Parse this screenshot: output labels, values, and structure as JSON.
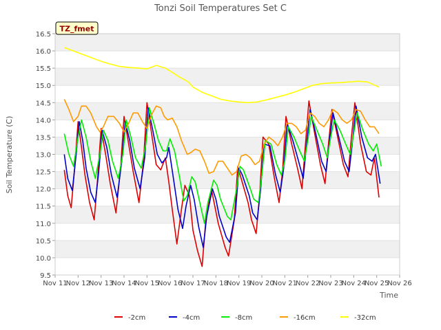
{
  "chart_data": {
    "type": "line",
    "title": "Tonzi Soil Temperatures Set C",
    "xlabel": "Time",
    "ylabel": "Soil Temperature (C)",
    "ylim": [
      9.5,
      16.5
    ],
    "yticks": [
      9.5,
      10.0,
      10.5,
      11.0,
      11.5,
      12.0,
      12.5,
      13.0,
      13.5,
      14.0,
      14.5,
      15.0,
      15.5,
      16.0,
      16.5
    ],
    "ytick_labels": [
      "9.5",
      "10.0",
      "10.5",
      "11.0",
      "11.5",
      "12.0",
      "12.5",
      "13.0",
      "13.5",
      "14.0",
      "14.5",
      "15.0",
      "15.5",
      "16.0",
      "16.5"
    ],
    "xlim": [
      11,
      26
    ],
    "xticks": [
      11,
      12,
      13,
      14,
      15,
      16,
      17,
      18,
      19,
      20,
      21,
      22,
      23,
      24,
      25,
      26
    ],
    "xtick_labels": [
      "Nov 11",
      "Nov 12",
      "Nov 13",
      "Nov 14",
      "Nov 15",
      "Nov 16",
      "Nov 17",
      "Nov 18",
      "Nov 19",
      "Nov 20",
      "Nov 21",
      "Nov 22",
      "Nov 23",
      "Nov 24",
      "Nov 25",
      "Nov 26"
    ],
    "grid": "horizontal bands",
    "annotation": "TZ_fmet",
    "legend_position": "bottom",
    "series": [
      {
        "name": "-2cm",
        "color": "#dd0000",
        "x": [
          11.4,
          11.55,
          11.7,
          11.85,
          12.0,
          12.15,
          12.3,
          12.5,
          12.7,
          12.85,
          13.0,
          13.2,
          13.4,
          13.65,
          13.85,
          14.0,
          14.2,
          14.4,
          14.65,
          14.85,
          15.0,
          15.2,
          15.4,
          15.6,
          15.8,
          15.95,
          16.1,
          16.3,
          16.5,
          16.65,
          16.85,
          17.0,
          17.2,
          17.4,
          17.55,
          17.8,
          17.95,
          18.1,
          18.4,
          18.55,
          18.8,
          18.95,
          19.1,
          19.4,
          19.55,
          19.75,
          19.9,
          20.05,
          20.3,
          20.55,
          20.75,
          20.9,
          21.05,
          21.3,
          21.55,
          21.75,
          21.9,
          22.05,
          22.3,
          22.55,
          22.75,
          22.9,
          23.05,
          23.3,
          23.55,
          23.75,
          23.9,
          24.05,
          24.3,
          24.55,
          24.75,
          24.9,
          25.1
        ],
        "y": [
          12.55,
          11.8,
          11.45,
          12.6,
          13.95,
          13.2,
          12.4,
          11.6,
          11.1,
          12.3,
          13.75,
          13.0,
          12.15,
          11.3,
          12.6,
          14.1,
          13.3,
          12.5,
          11.6,
          12.8,
          14.5,
          13.6,
          12.7,
          12.55,
          12.9,
          12.2,
          11.4,
          10.4,
          11.4,
          12.1,
          11.8,
          10.8,
          10.2,
          9.75,
          11.0,
          12.0,
          11.5,
          11.0,
          10.3,
          10.05,
          11.1,
          12.65,
          12.3,
          11.6,
          11.1,
          10.7,
          11.8,
          13.5,
          13.3,
          12.3,
          11.6,
          12.5,
          14.1,
          13.3,
          12.6,
          12.0,
          13.3,
          14.55,
          13.6,
          12.7,
          12.15,
          13.3,
          14.3,
          13.5,
          12.7,
          12.35,
          13.5,
          14.5,
          13.3,
          12.5,
          12.4,
          12.9,
          11.75
        ]
      },
      {
        "name": "-4cm",
        "color": "#0000cc",
        "x": [
          11.4,
          11.55,
          11.75,
          11.9,
          12.05,
          12.2,
          12.35,
          12.55,
          12.75,
          12.9,
          13.05,
          13.25,
          13.45,
          13.7,
          13.9,
          14.05,
          14.25,
          14.45,
          14.7,
          14.9,
          15.05,
          15.25,
          15.45,
          15.65,
          15.85,
          15.95,
          16.15,
          16.35,
          16.55,
          16.7,
          16.9,
          17.05,
          17.25,
          17.45,
          17.6,
          17.85,
          18.0,
          18.15,
          18.45,
          18.6,
          18.85,
          19.0,
          19.15,
          19.45,
          19.6,
          19.8,
          19.95,
          20.1,
          20.35,
          20.6,
          20.8,
          20.95,
          21.1,
          21.35,
          21.6,
          21.8,
          21.95,
          22.1,
          22.35,
          22.6,
          22.8,
          22.95,
          23.1,
          23.35,
          23.6,
          23.8,
          23.95,
          24.1,
          24.35,
          24.6,
          24.8,
          24.95,
          25.15
        ],
        "y": [
          13.0,
          12.3,
          11.95,
          12.9,
          13.95,
          13.4,
          12.6,
          11.9,
          11.6,
          12.5,
          13.7,
          13.2,
          12.4,
          11.75,
          12.8,
          13.95,
          13.4,
          12.6,
          12.0,
          12.9,
          14.35,
          13.7,
          13.0,
          12.75,
          12.9,
          13.2,
          12.3,
          11.4,
          10.85,
          11.5,
          12.1,
          11.7,
          10.9,
          10.3,
          11.2,
          12.0,
          11.7,
          11.2,
          10.6,
          10.45,
          11.3,
          12.6,
          12.4,
          11.8,
          11.3,
          11.1,
          12.0,
          13.3,
          13.25,
          12.4,
          11.9,
          12.6,
          13.9,
          13.4,
          12.8,
          12.3,
          13.3,
          14.3,
          13.6,
          12.8,
          12.5,
          13.4,
          14.2,
          13.5,
          12.8,
          12.5,
          13.4,
          14.4,
          13.5,
          12.9,
          12.8,
          13.0,
          12.15
        ]
      },
      {
        "name": "-8cm",
        "color": "#00ee00",
        "x": [
          11.4,
          11.6,
          11.8,
          12.0,
          12.15,
          12.35,
          12.55,
          12.75,
          12.95,
          13.1,
          13.3,
          13.5,
          13.75,
          13.95,
          14.1,
          14.3,
          14.5,
          14.75,
          14.95,
          15.1,
          15.3,
          15.5,
          15.7,
          15.85,
          16.0,
          16.2,
          16.4,
          16.6,
          16.75,
          16.95,
          17.1,
          17.3,
          17.5,
          17.65,
          17.9,
          18.05,
          18.2,
          18.5,
          18.65,
          18.9,
          19.05,
          19.2,
          19.5,
          19.65,
          19.85,
          20.0,
          20.15,
          20.4,
          20.65,
          20.85,
          21.0,
          21.15,
          21.4,
          21.65,
          21.85,
          22.0,
          22.15,
          22.4,
          22.65,
          22.85,
          23.0,
          23.15,
          23.4,
          23.65,
          23.85,
          24.0,
          24.15,
          24.4,
          24.65,
          24.85,
          25.0,
          25.2
        ],
        "y": [
          13.6,
          13.0,
          12.65,
          13.5,
          14.0,
          13.5,
          12.8,
          12.3,
          13.0,
          13.7,
          13.4,
          12.8,
          12.3,
          13.0,
          14.0,
          13.5,
          12.9,
          12.6,
          13.3,
          14.35,
          13.9,
          13.4,
          13.1,
          13.1,
          13.45,
          13.1,
          12.4,
          11.65,
          11.8,
          12.35,
          12.2,
          11.6,
          11.0,
          11.6,
          12.25,
          12.1,
          11.7,
          11.2,
          11.1,
          12.0,
          12.65,
          12.55,
          12.0,
          11.7,
          11.6,
          12.4,
          13.4,
          13.3,
          12.7,
          12.4,
          12.8,
          13.8,
          13.5,
          13.1,
          12.8,
          13.4,
          14.1,
          13.7,
          13.3,
          12.9,
          13.5,
          14.0,
          13.7,
          13.3,
          13.0,
          13.6,
          14.2,
          13.7,
          13.3,
          13.1,
          13.3,
          12.65
        ]
      },
      {
        "name": "-16cm",
        "color": "#ff9900",
        "x": [
          11.4,
          11.6,
          11.8,
          12.0,
          12.15,
          12.35,
          12.55,
          12.8,
          12.95,
          13.1,
          13.3,
          13.55,
          13.8,
          14.0,
          14.2,
          14.4,
          14.6,
          14.8,
          15.0,
          15.2,
          15.4,
          15.6,
          15.75,
          15.9,
          16.1,
          16.3,
          16.5,
          16.75,
          16.9,
          17.1,
          17.3,
          17.5,
          17.7,
          17.9,
          18.1,
          18.3,
          18.5,
          18.7,
          18.9,
          19.1,
          19.3,
          19.5,
          19.7,
          19.9,
          20.1,
          20.3,
          20.5,
          20.7,
          20.9,
          21.1,
          21.3,
          21.5,
          21.7,
          21.9,
          22.1,
          22.3,
          22.5,
          22.7,
          22.9,
          23.1,
          23.3,
          23.5,
          23.7,
          23.9,
          24.1,
          24.3,
          24.5,
          24.7,
          24.9,
          25.1
        ],
        "y": [
          14.6,
          14.3,
          13.95,
          14.1,
          14.4,
          14.4,
          14.2,
          13.8,
          13.65,
          13.8,
          14.1,
          14.1,
          13.9,
          13.65,
          13.9,
          14.2,
          14.2,
          13.95,
          13.75,
          14.15,
          14.4,
          14.35,
          14.1,
          14.0,
          14.05,
          13.8,
          13.4,
          13.0,
          13.05,
          13.15,
          13.1,
          12.8,
          12.45,
          12.5,
          12.8,
          12.8,
          12.6,
          12.4,
          12.5,
          12.95,
          13.0,
          12.9,
          12.7,
          12.8,
          13.3,
          13.5,
          13.4,
          13.25,
          13.5,
          13.9,
          13.9,
          13.8,
          13.6,
          13.7,
          14.2,
          14.1,
          13.9,
          13.8,
          14.0,
          14.3,
          14.2,
          14.0,
          13.9,
          14.0,
          14.3,
          14.25,
          14.0,
          13.8,
          13.8,
          13.6
        ]
      },
      {
        "name": "-32cm",
        "color": "#ffff00",
        "x": [
          11.4,
          11.8,
          12.2,
          12.6,
          13.0,
          13.4,
          13.8,
          14.2,
          14.6,
          15.0,
          15.4,
          15.8,
          16.0,
          16.4,
          16.8,
          17.0,
          17.4,
          17.8,
          18.2,
          18.6,
          19.0,
          19.4,
          19.8,
          20.2,
          20.6,
          21.0,
          21.4,
          21.8,
          22.2,
          22.6,
          23.0,
          23.4,
          23.8,
          24.2,
          24.6,
          25.0,
          25.1
        ],
        "y": [
          16.1,
          16.0,
          15.9,
          15.8,
          15.7,
          15.62,
          15.55,
          15.52,
          15.5,
          15.48,
          15.58,
          15.5,
          15.42,
          15.25,
          15.1,
          14.95,
          14.8,
          14.7,
          14.6,
          14.55,
          14.52,
          14.5,
          14.52,
          14.58,
          14.65,
          14.72,
          14.8,
          14.9,
          15.0,
          15.05,
          15.07,
          15.08,
          15.1,
          15.12,
          15.1,
          14.98,
          14.95
        ]
      }
    ]
  }
}
